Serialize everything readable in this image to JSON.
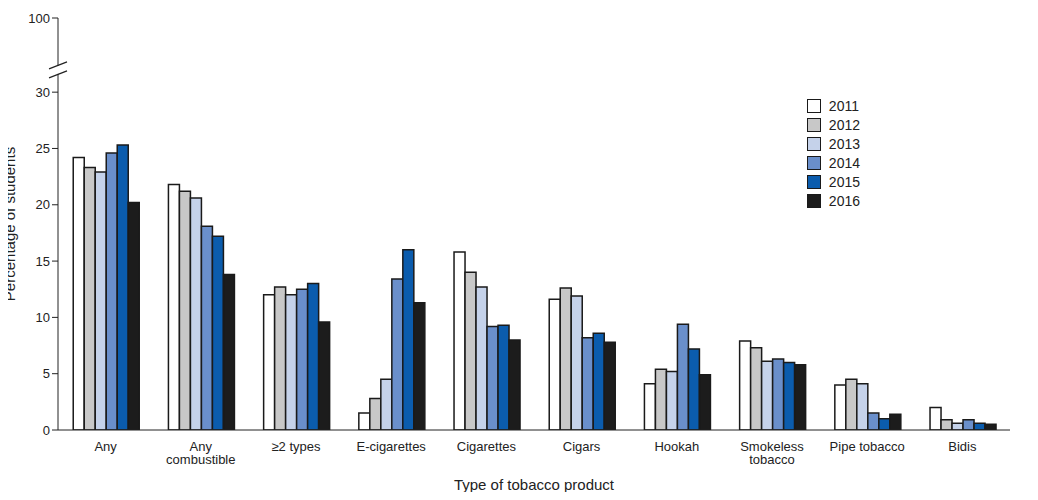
{
  "chart_data": {
    "type": "bar",
    "x_label": "Type of tobacco product",
    "y_label": "Percentage of students",
    "categories": [
      "Any",
      "Any combustible",
      "≥2 types",
      "E-cigarettes",
      "Cigarettes",
      "Cigars",
      "Hookah",
      "Smokeless tobacco",
      "Pipe tobacco",
      "Bidis"
    ],
    "series": [
      {
        "name": "2011",
        "color": "#ffffff",
        "values": [
          24.2,
          21.8,
          12.0,
          1.5,
          15.8,
          11.6,
          4.1,
          7.9,
          4.0,
          2.0
        ]
      },
      {
        "name": "2012",
        "color": "#c8c8c8",
        "values": [
          23.3,
          21.2,
          12.7,
          2.8,
          14.0,
          12.6,
          5.4,
          7.3,
          4.5,
          0.9
        ]
      },
      {
        "name": "2013",
        "color": "#c5d2ea",
        "values": [
          22.9,
          20.6,
          12.0,
          4.5,
          12.7,
          11.9,
          5.2,
          6.1,
          4.1,
          0.6
        ]
      },
      {
        "name": "2014",
        "color": "#6a8fcb",
        "values": [
          24.6,
          18.1,
          12.5,
          13.4,
          9.2,
          8.2,
          9.4,
          6.3,
          1.5,
          0.9
        ]
      },
      {
        "name": "2015",
        "color": "#0b5cad",
        "values": [
          25.3,
          17.2,
          13.0,
          16.0,
          9.3,
          8.6,
          7.2,
          6.0,
          1.0,
          0.6
        ]
      },
      {
        "name": "2016",
        "color": "#1c1c1c",
        "values": [
          20.2,
          13.8,
          9.6,
          11.3,
          8.0,
          7.8,
          4.9,
          5.8,
          1.4,
          0.5
        ]
      }
    ],
    "ylim": [
      0,
      100
    ],
    "yticks": [
      0,
      5,
      10,
      15,
      20,
      25,
      30,
      100
    ],
    "grid": false,
    "legend": "upper right"
  }
}
